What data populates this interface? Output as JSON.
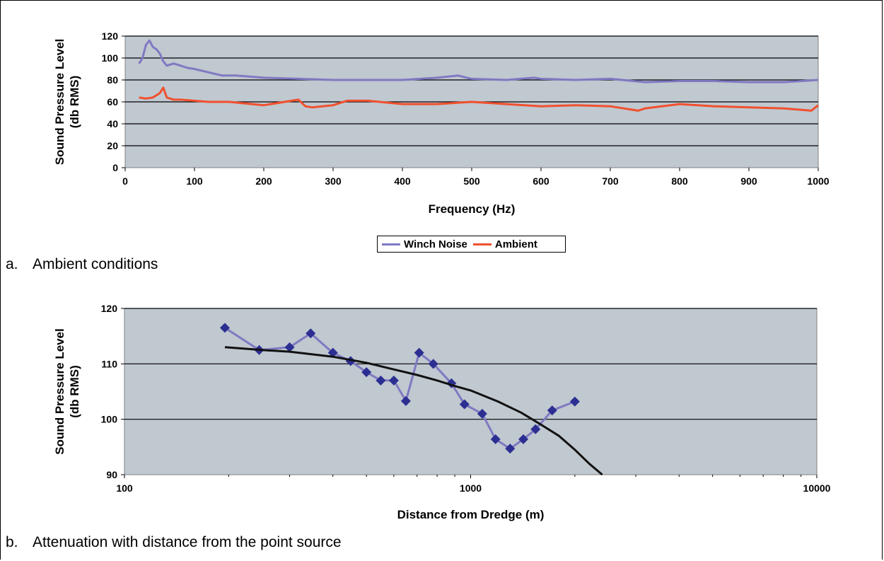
{
  "captions": {
    "a_label": "a.",
    "a_text": "Ambient conditions",
    "b_label": "b.",
    "b_text": "Attenuation with distance from the point source"
  },
  "chart_data": [
    {
      "type": "line",
      "title": "",
      "xlabel": "Frequency (Hz)",
      "ylabel_line1": "Sound Pressure Level",
      "ylabel_line2": "(db RMS)",
      "xlim": [
        0,
        1000
      ],
      "ylim": [
        0,
        120
      ],
      "xticks": [
        0,
        100,
        200,
        300,
        400,
        500,
        600,
        700,
        800,
        900,
        1000
      ],
      "yticks": [
        0,
        20,
        40,
        60,
        80,
        100,
        120
      ],
      "grid": "horizontal",
      "legend": "bottom-center",
      "plot_bg": "#c0c8d0",
      "series": [
        {
          "name": "Winch Noise",
          "color": "#8079c2",
          "x": [
            20,
            25,
            30,
            35,
            40,
            45,
            50,
            55,
            60,
            70,
            80,
            90,
            100,
            120,
            140,
            160,
            180,
            200,
            250,
            300,
            350,
            400,
            450,
            480,
            500,
            550,
            590,
            600,
            650,
            700,
            750,
            800,
            850,
            900,
            950,
            1000
          ],
          "y": [
            95,
            100,
            112,
            116,
            110,
            108,
            104,
            97,
            93,
            95,
            93,
            91,
            90,
            87,
            84,
            84,
            83,
            82,
            81,
            80,
            80,
            80,
            82,
            84,
            81,
            80,
            82,
            81,
            80,
            81,
            78,
            79,
            79,
            78,
            78,
            80
          ]
        },
        {
          "name": "Ambient",
          "color": "#f0502e",
          "x": [
            20,
            30,
            40,
            50,
            55,
            60,
            70,
            80,
            100,
            120,
            150,
            200,
            250,
            260,
            270,
            300,
            320,
            350,
            400,
            450,
            500,
            550,
            600,
            650,
            700,
            740,
            750,
            800,
            850,
            900,
            950,
            990,
            1000
          ],
          "y": [
            64,
            63,
            64,
            68,
            73,
            64,
            62,
            62,
            61,
            60,
            60,
            57,
            62,
            56,
            55,
            57,
            61,
            61,
            58,
            58,
            60,
            58,
            56,
            57,
            56,
            52,
            54,
            58,
            56,
            55,
            54,
            52,
            57
          ]
        }
      ]
    },
    {
      "type": "line",
      "title": "",
      "xlabel": "Distance from Dredge (m)",
      "ylabel_line1": "Sound Pressure Level",
      "ylabel_line2": "(db RMS)",
      "xscale": "log",
      "xlim": [
        100,
        10000
      ],
      "ylim": [
        90,
        120
      ],
      "xticks": [
        100,
        1000,
        10000
      ],
      "yticks": [
        90,
        100,
        110,
        120
      ],
      "grid": "horizontal",
      "legend": "none",
      "plot_bg": "#c0c8d0",
      "series": [
        {
          "color": "#8079c2",
          "marker": "diamond",
          "marker_color": "#2c2f91",
          "x": [
            195,
            245,
            300,
            345,
            400,
            450,
            500,
            550,
            600,
            650,
            710,
            780,
            880,
            960,
            1080,
            1180,
            1300,
            1420,
            1540,
            1720,
            2000
          ],
          "y": [
            116.5,
            112.5,
            113,
            115.5,
            112,
            110.5,
            108.5,
            107,
            107,
            103.3,
            112,
            110,
            106.5,
            102.7,
            101,
            96.4,
            94.7,
            96.4,
            98.2,
            101.6,
            103.2
          ]
        },
        {
          "color": "#111111",
          "x": [
            195,
            250,
            300,
            400,
            500,
            600,
            700,
            800,
            900,
            1000,
            1200,
            1400,
            1600,
            1800,
            2000,
            2200,
            2400
          ],
          "y": [
            113,
            112.5,
            112.2,
            111.3,
            110.2,
            109,
            108,
            107,
            106,
            105.2,
            103.2,
            101.2,
            99,
            97,
            94.5,
            92,
            90
          ]
        }
      ]
    }
  ]
}
